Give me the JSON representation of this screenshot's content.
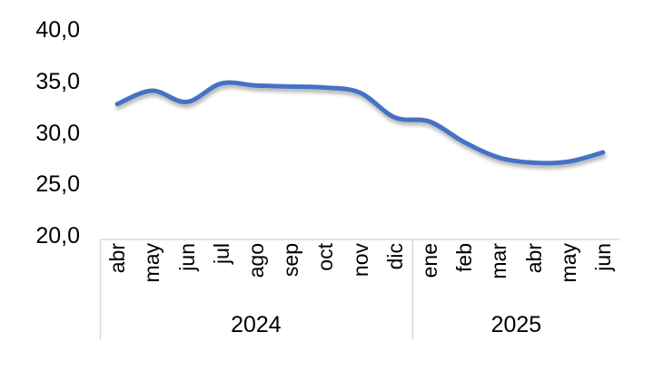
{
  "chart_data": {
    "type": "line",
    "title": "",
    "xlabel": "",
    "ylabel": "",
    "categories": [
      "abr",
      "may",
      "jun",
      "jul",
      "ago",
      "sep",
      "oct",
      "nov",
      "dic",
      "ene",
      "feb",
      "mar",
      "abr",
      "may",
      "jun"
    ],
    "category_groups": [
      {
        "label": "2024",
        "count": 9
      },
      {
        "label": "2025",
        "count": 6
      }
    ],
    "series": [
      {
        "name": "",
        "values": [
          32.8,
          34.1,
          33.0,
          34.8,
          34.6,
          34.5,
          34.4,
          33.9,
          31.5,
          31.1,
          29.1,
          27.6,
          27.1,
          27.2,
          28.1
        ],
        "color": "#4472C4"
      }
    ],
    "y_ticks": {
      "values": [
        40,
        35,
        30,
        25,
        20
      ],
      "labels": [
        "40,0",
        "35,0",
        "30,0",
        "25,0",
        "20,0"
      ]
    },
    "ylim": [
      20,
      40
    ],
    "grid": false,
    "legend": "none",
    "smooth": true,
    "line_shadow": true,
    "axis_line_color": "#d9d9d9",
    "text_color": "#000000",
    "background": "#ffffff"
  }
}
